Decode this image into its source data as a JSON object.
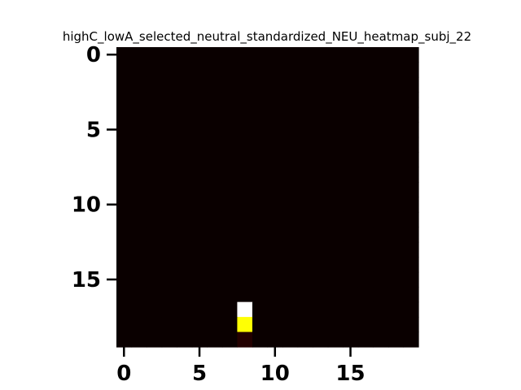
{
  "chart_data": {
    "type": "heatmap",
    "title": "highC_lowA_selected_neutral_standardized_NEU_heatmap_subj_22",
    "xlabel": "",
    "ylabel": "",
    "rows": 20,
    "cols": 20,
    "x_ticks": [
      0,
      5,
      10,
      15
    ],
    "y_ticks": [
      0,
      5,
      10,
      15
    ],
    "colormap": "hot",
    "background_value": 0.0,
    "cells": [
      {
        "row": 17,
        "col": 8,
        "value": 1.0
      },
      {
        "row": 18,
        "col": 8,
        "value": 0.75
      },
      {
        "row": 19,
        "col": 8,
        "value": 0.05
      }
    ],
    "grid": false,
    "legend": "none"
  }
}
